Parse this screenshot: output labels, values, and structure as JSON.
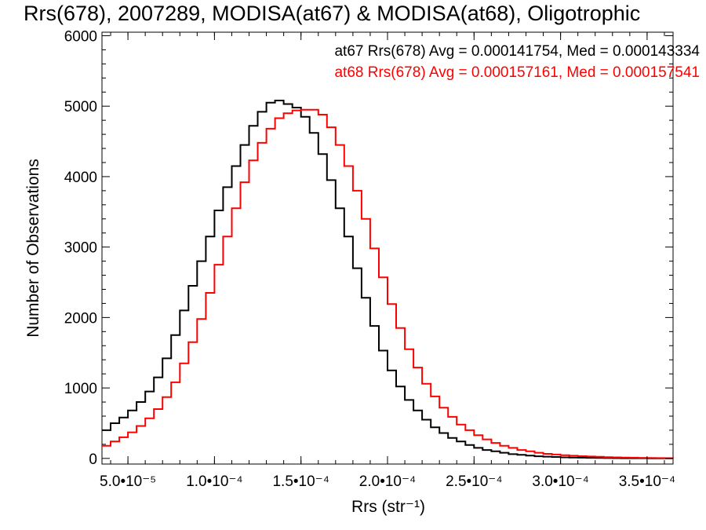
{
  "chart_data": {
    "type": "line",
    "step": true,
    "title": "Rrs(678), 2007289, MODISA(at67) & MODISA(at68), Oligotrophic",
    "xlabel": "Rrs (str⁻¹)",
    "ylabel": "Number of Observations",
    "xlim": [
      3.5e-05,
      0.000365
    ],
    "ylim": [
      -80,
      6050
    ],
    "grid": false,
    "legend_position": "top-right",
    "xticks": [
      {
        "value": 5e-05,
        "label": "5.0•10⁻⁵"
      },
      {
        "value": 0.0001,
        "label": "1.0•10⁻⁴"
      },
      {
        "value": 0.00015,
        "label": "1.5•10⁻⁴"
      },
      {
        "value": 0.0002,
        "label": "2.0•10⁻⁴"
      },
      {
        "value": 0.00025,
        "label": "2.5•10⁻⁴"
      },
      {
        "value": 0.0003,
        "label": "3.0•10⁻⁴"
      },
      {
        "value": 0.00035,
        "label": "3.5•10⁻⁴"
      }
    ],
    "yticks": [
      {
        "value": 0,
        "label": "0"
      },
      {
        "value": 1000,
        "label": "1000"
      },
      {
        "value": 2000,
        "label": "2000"
      },
      {
        "value": 3000,
        "label": "3000"
      },
      {
        "value": 4000,
        "label": "4000"
      },
      {
        "value": 5000,
        "label": "5000"
      },
      {
        "value": 6000,
        "label": "6000"
      }
    ],
    "series": [
      {
        "name": "at67",
        "legend": "at67 Rrs(678) Avg = 0.000141754, Med = 0.000143334",
        "color": "#000000",
        "x": [
          3.5e-05,
          4e-05,
          4.5e-05,
          5e-05,
          5.5e-05,
          6e-05,
          6.5e-05,
          7e-05,
          7.5e-05,
          8e-05,
          8.5e-05,
          9e-05,
          9.5e-05,
          0.0001,
          0.000105,
          0.00011,
          0.000115,
          0.00012,
          0.000125,
          0.00013,
          0.000135,
          0.00014,
          0.000145,
          0.00015,
          0.000155,
          0.00016,
          0.000165,
          0.00017,
          0.000175,
          0.00018,
          0.000185,
          0.00019,
          0.000195,
          0.0002,
          0.000205,
          0.00021,
          0.000215,
          0.00022,
          0.000225,
          0.00023,
          0.000235,
          0.00024,
          0.000245,
          0.00025,
          0.000255,
          0.00026,
          0.000265,
          0.00027,
          0.000275,
          0.00028,
          0.000285,
          0.00029,
          0.000295,
          0.0003,
          0.000305,
          0.00031,
          0.000315,
          0.00032,
          0.000325,
          0.00033,
          0.000335,
          0.00034,
          0.000345,
          0.00035,
          0.000355,
          0.00036,
          0.000365
        ],
        "values": [
          400,
          500,
          580,
          680,
          800,
          950,
          1150,
          1420,
          1750,
          2100,
          2450,
          2800,
          3150,
          3520,
          3850,
          4150,
          4450,
          4720,
          4920,
          5050,
          5080,
          5030,
          4980,
          4850,
          4620,
          4320,
          3950,
          3550,
          3150,
          2700,
          2280,
          1880,
          1530,
          1250,
          1020,
          830,
          680,
          550,
          440,
          360,
          290,
          240,
          190,
          150,
          120,
          100,
          80,
          60,
          50,
          40,
          30,
          25,
          20,
          15,
          12,
          10,
          8,
          6,
          5,
          4,
          3,
          2,
          2,
          1,
          1,
          0,
          0
        ]
      },
      {
        "name": "at68",
        "legend": "at68 Rrs(678) Avg = 0.000157161, Med = 0.000157541",
        "color": "#ff0000",
        "x": [
          3.5e-05,
          4e-05,
          4.5e-05,
          5e-05,
          5.5e-05,
          6e-05,
          6.5e-05,
          7e-05,
          7.5e-05,
          8e-05,
          8.5e-05,
          9e-05,
          9.5e-05,
          0.0001,
          0.000105,
          0.00011,
          0.000115,
          0.00012,
          0.000125,
          0.00013,
          0.000135,
          0.00014,
          0.000145,
          0.00015,
          0.000155,
          0.00016,
          0.000165,
          0.00017,
          0.000175,
          0.00018,
          0.000185,
          0.00019,
          0.000195,
          0.0002,
          0.000205,
          0.00021,
          0.000215,
          0.00022,
          0.000225,
          0.00023,
          0.000235,
          0.00024,
          0.000245,
          0.00025,
          0.000255,
          0.00026,
          0.000265,
          0.00027,
          0.000275,
          0.00028,
          0.000285,
          0.00029,
          0.000295,
          0.0003,
          0.000305,
          0.00031,
          0.000315,
          0.00032,
          0.000325,
          0.00033,
          0.000335,
          0.00034,
          0.000345,
          0.00035,
          0.000355,
          0.00036,
          0.000365
        ],
        "values": [
          180,
          240,
          300,
          370,
          460,
          570,
          700,
          870,
          1080,
          1350,
          1650,
          1980,
          2350,
          2750,
          3150,
          3550,
          3920,
          4230,
          4480,
          4680,
          4830,
          4900,
          4940,
          4950,
          4950,
          4880,
          4700,
          4450,
          4150,
          3800,
          3400,
          2980,
          2570,
          2190,
          1850,
          1550,
          1290,
          1060,
          880,
          720,
          590,
          480,
          400,
          330,
          270,
          220,
          180,
          150,
          120,
          100,
          80,
          65,
          55,
          45,
          38,
          32,
          27,
          22,
          18,
          15,
          12,
          10,
          8,
          6,
          5,
          4,
          3
        ]
      }
    ]
  }
}
